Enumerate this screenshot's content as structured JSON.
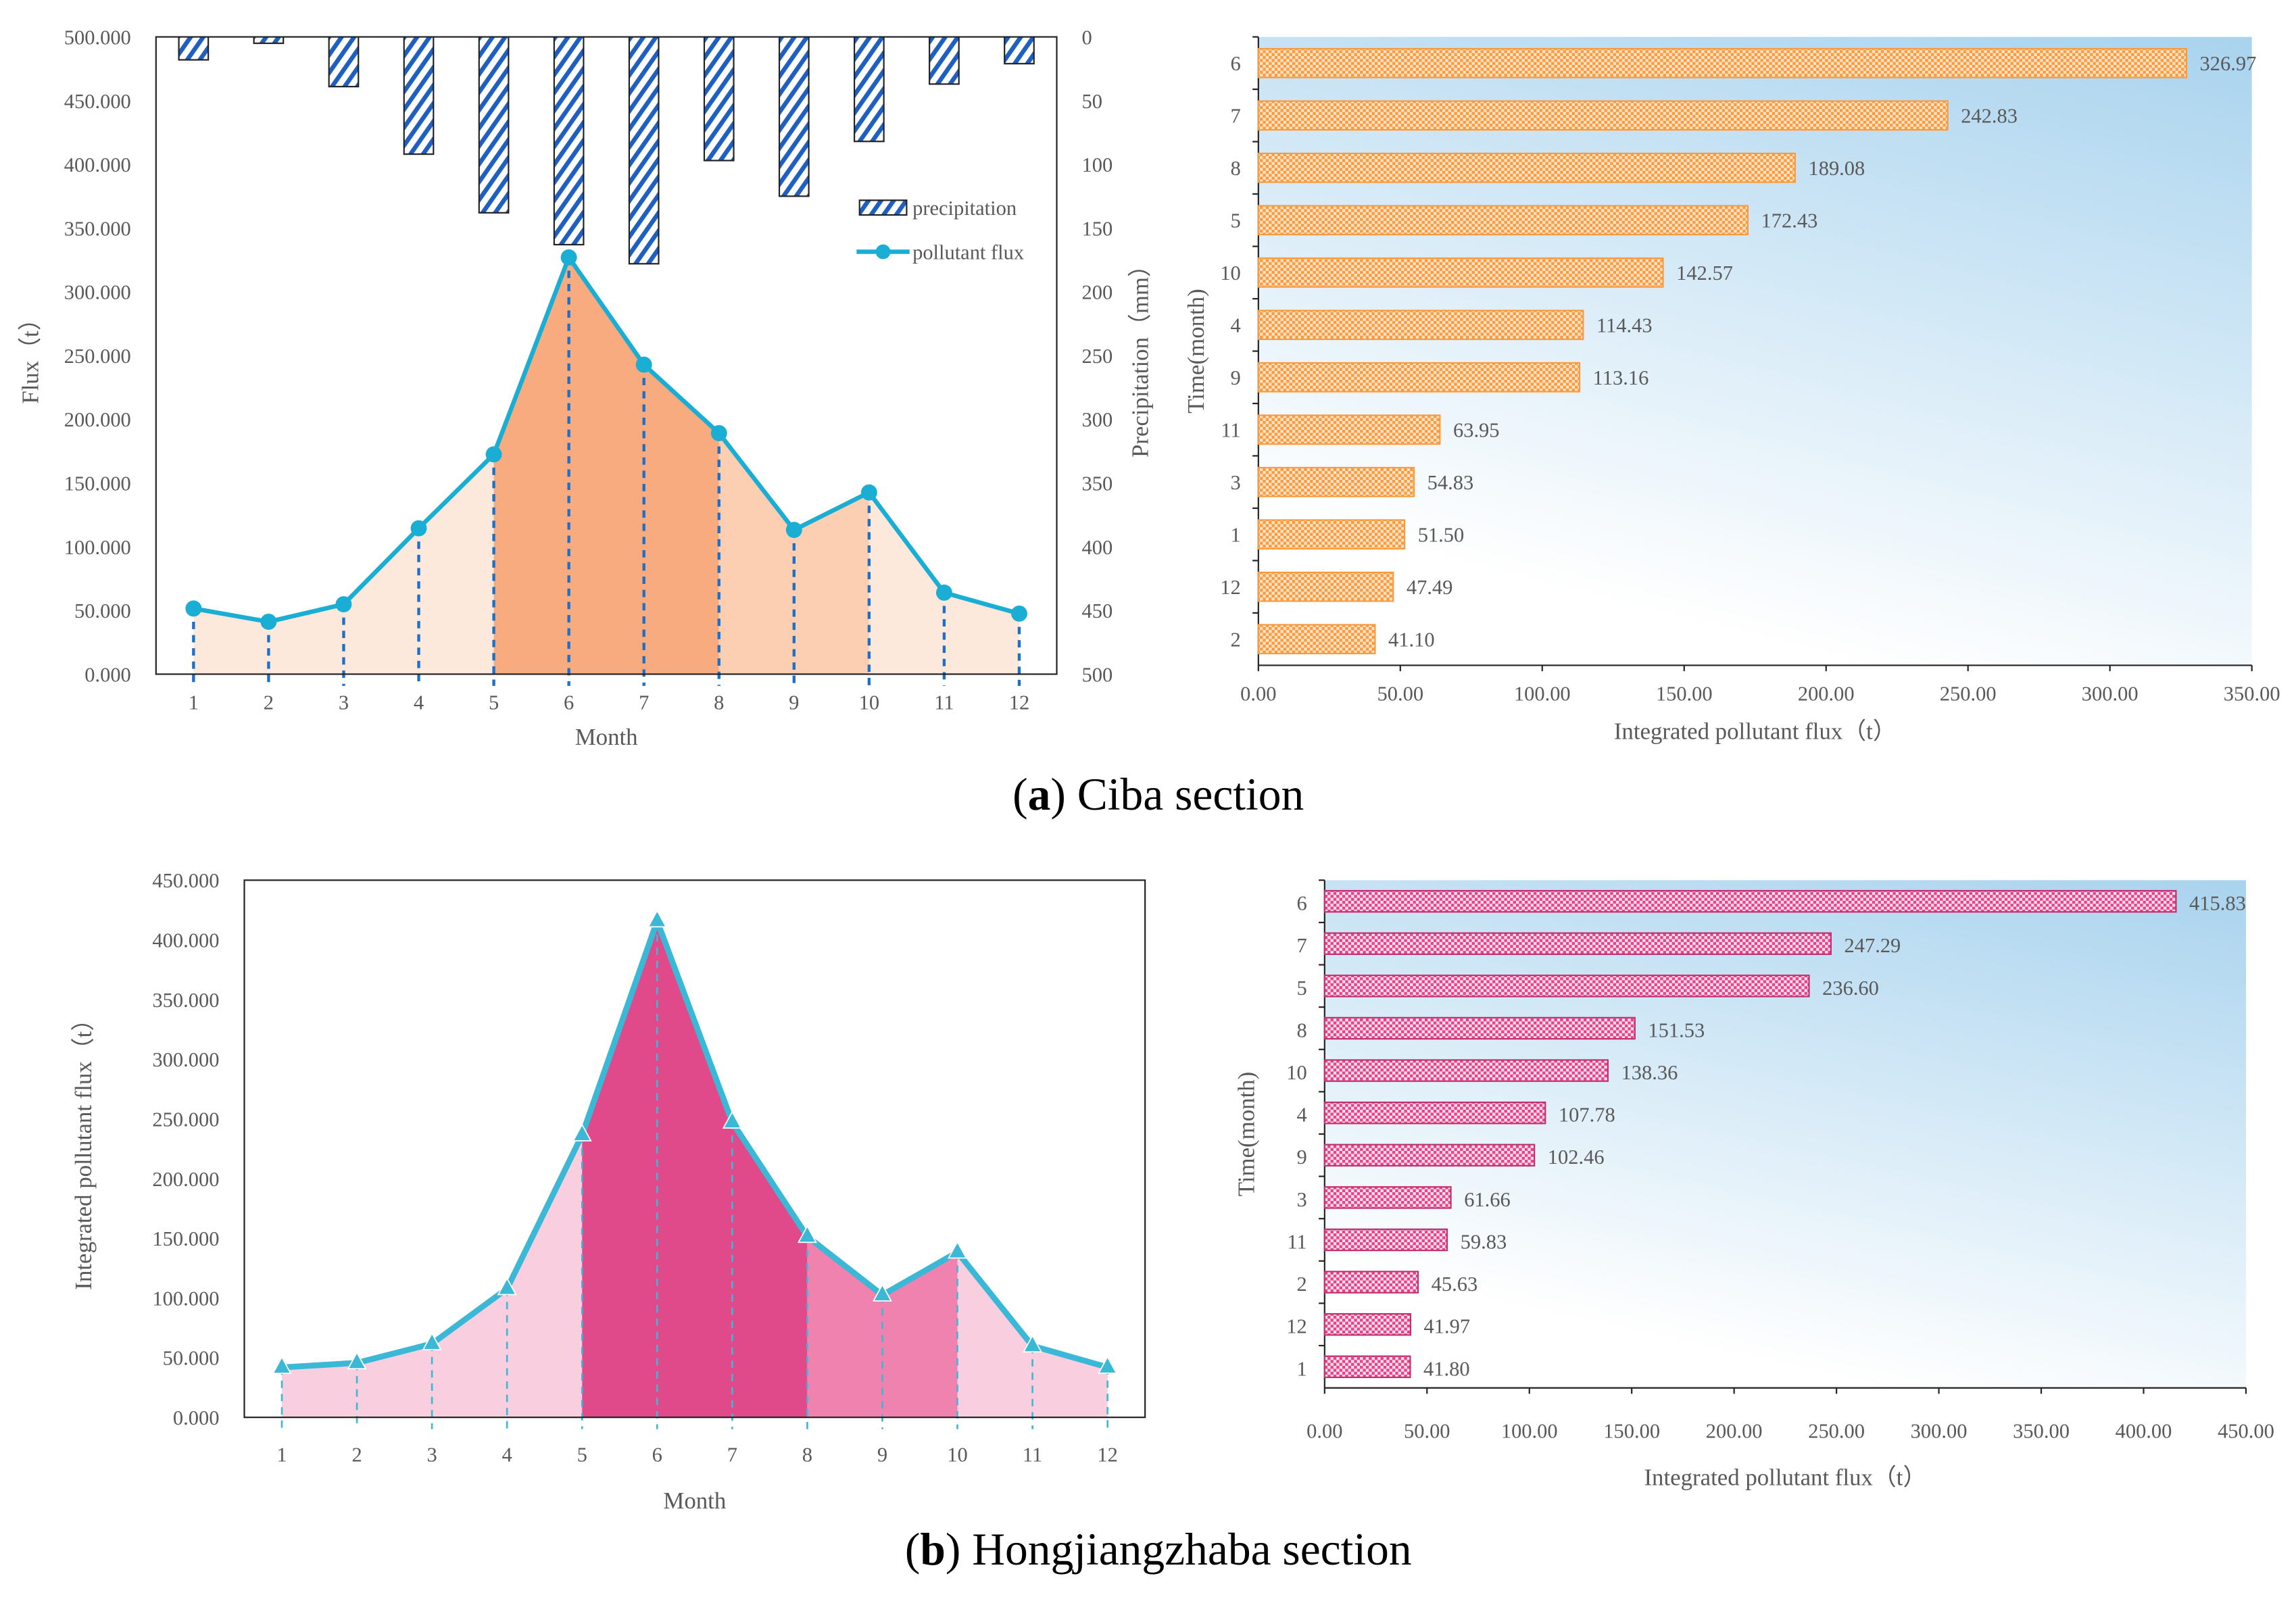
{
  "chart_data": [
    {
      "id": "a_left",
      "type": "bar+line",
      "xlabel": "Month",
      "ylabel": "Flux（t）",
      "ylabel_right": "Precipitation（mm）",
      "categories": [
        "1",
        "2",
        "3",
        "4",
        "5",
        "6",
        "7",
        "8",
        "9",
        "10",
        "11",
        "12"
      ],
      "ylim": [
        0,
        500
      ],
      "ylim_right": [
        0,
        500
      ],
      "yticks": [
        "0.000",
        "50.000",
        "100.000",
        "150.000",
        "200.000",
        "250.000",
        "300.000",
        "350.000",
        "400.000",
        "450.000",
        "500.000"
      ],
      "yticks_right": [
        "0",
        "50",
        "100",
        "150",
        "200",
        "250",
        "300",
        "350",
        "400",
        "450",
        "500"
      ],
      "series": [
        {
          "name": "precipitation",
          "type": "bar",
          "axis": "right-inverted",
          "values": [
            18,
            5,
            39,
            92,
            138,
            163,
            178,
            97,
            125,
            82,
            37,
            21
          ]
        },
        {
          "name": "pollutant flux",
          "type": "line",
          "axis": "left",
          "values": [
            51.5,
            41.1,
            54.83,
            114.43,
            172.43,
            326.97,
            242.83,
            189.08,
            113.16,
            142.57,
            63.95,
            47.49
          ]
        }
      ],
      "legend": "top-right",
      "colors": {
        "line": "#1aaed4",
        "bar": "#1f5fbf",
        "drop": "#1f6fc4",
        "fill_light": "#fde8dc",
        "fill_dark": "#f9ab80",
        "fill_mid": "#fccfb3"
      }
    },
    {
      "id": "a_right",
      "type": "bar",
      "orientation": "horizontal",
      "xlabel": "Integrated  pollutant flux（t）",
      "ylabel": "Time(month)",
      "categories": [
        "6",
        "7",
        "8",
        "5",
        "10",
        "4",
        "9",
        "11",
        "3",
        "1",
        "12",
        "2"
      ],
      "values": [
        326.97,
        242.83,
        189.08,
        172.43,
        142.57,
        114.43,
        113.16,
        63.95,
        54.83,
        51.5,
        47.49,
        41.1
      ],
      "labels": [
        "326.97",
        "242.83",
        "189.08",
        "172.43",
        "142.57",
        "114.43",
        "113.16",
        "63.95",
        "54.83",
        "51.50",
        "47.49",
        "41.10"
      ],
      "xlim": [
        0,
        350
      ],
      "xticks": [
        "0.00",
        "50.00",
        "100.00",
        "150.00",
        "200.00",
        "250.00",
        "300.00",
        "350.00"
      ],
      "colors": {
        "bar": "#f99b3e"
      }
    },
    {
      "id": "b_left",
      "type": "area",
      "xlabel": "Month",
      "ylabel": "Integrated  pollutant flux（t）",
      "categories": [
        "1",
        "2",
        "3",
        "4",
        "5",
        "6",
        "7",
        "8",
        "9",
        "10",
        "11",
        "12"
      ],
      "values": [
        41.8,
        45.63,
        61.66,
        107.78,
        236.6,
        415.83,
        247.29,
        151.53,
        102.46,
        138.36,
        59.83,
        41.97
      ],
      "ylim": [
        0,
        450
      ],
      "yticks": [
        "0.000",
        "50.000",
        "100.000",
        "150.000",
        "200.000",
        "250.000",
        "300.000",
        "350.000",
        "400.000",
        "450.000"
      ],
      "colors": {
        "line": "#3ab8d6",
        "fill_light": "#f9cfe0",
        "fill_dark": "#e04a8a",
        "fill_mid": "#ef82ae"
      }
    },
    {
      "id": "b_right",
      "type": "bar",
      "orientation": "horizontal",
      "xlabel": "Integrated  pollutant flux（t）",
      "ylabel": "Time(month)",
      "categories": [
        "6",
        "7",
        "5",
        "8",
        "10",
        "4",
        "9",
        "3",
        "11",
        "2",
        "12",
        "1"
      ],
      "values": [
        415.83,
        247.29,
        236.6,
        151.53,
        138.36,
        107.78,
        102.46,
        61.66,
        59.83,
        45.63,
        41.97,
        41.8
      ],
      "labels": [
        "415.83",
        "247.29",
        "236.60",
        "151.53",
        "138.36",
        "107.78",
        "102.46",
        "61.66",
        "59.83",
        "45.63",
        "41.97",
        "41.80"
      ],
      "xlim": [
        0,
        450
      ],
      "xticks": [
        "0.00",
        "50.00",
        "100.00",
        "150.00",
        "200.00",
        "250.00",
        "300.00",
        "350.00",
        "400.00",
        "450.00"
      ],
      "colors": {
        "bar": "#e6438a"
      }
    }
  ],
  "captions": {
    "a_letter": "a",
    "a_text": " Ciba section",
    "b_letter": "b",
    "b_text": " Hongjiangzhaba section"
  }
}
